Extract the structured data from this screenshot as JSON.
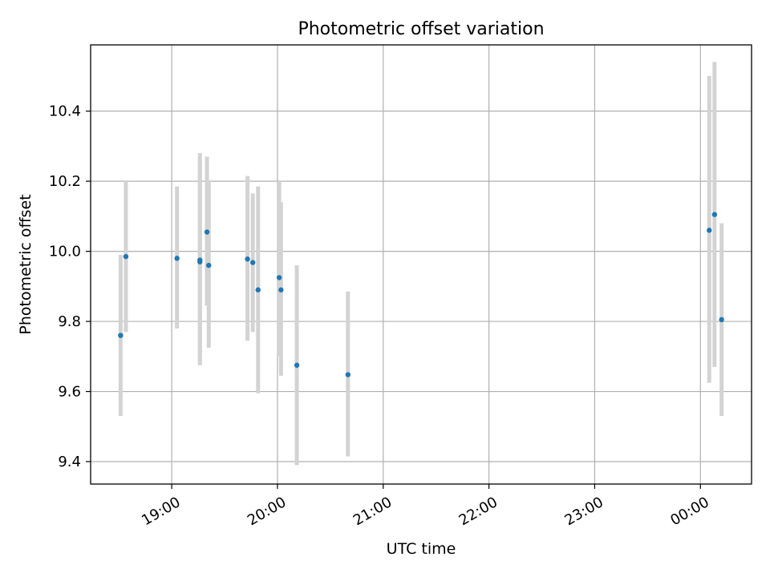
{
  "chart_data": {
    "type": "scatter",
    "title": "Photometric offset variation",
    "xlabel": "UTC time",
    "ylabel": "Photometric offset",
    "grid": true,
    "colors": {
      "points": "#1f77b4",
      "errorbars": "#d3d3d3"
    },
    "xlim": [
      "18:14",
      "00:29"
    ],
    "ylim": [
      9.336,
      10.589
    ],
    "xticks": [
      "19:00",
      "20:00",
      "21:00",
      "22:00",
      "23:00",
      "00:00"
    ],
    "yticks": [
      "9.4",
      "9.6",
      "9.8",
      "10.0",
      "10.2",
      "10.4"
    ],
    "points": [
      {
        "x": "18:31",
        "y": 9.76,
        "ylo": 9.53,
        "yhi": 9.99
      },
      {
        "x": "18:34",
        "y": 9.985,
        "ylo": 9.77,
        "yhi": 10.2
      },
      {
        "x": "19:03",
        "y": 9.98,
        "ylo": 9.78,
        "yhi": 10.185
      },
      {
        "x": "19:16",
        "y": 9.975,
        "ylo": 9.675,
        "yhi": 10.28
      },
      {
        "x": "19:16",
        "y": 9.97,
        "ylo": 9.68,
        "yhi": 10.26
      },
      {
        "x": "19:20",
        "y": 10.055,
        "ylo": 9.845,
        "yhi": 10.27
      },
      {
        "x": "19:21",
        "y": 9.96,
        "ylo": 9.725,
        "yhi": 10.2
      },
      {
        "x": "19:43",
        "y": 9.978,
        "ylo": 9.745,
        "yhi": 10.215
      },
      {
        "x": "19:46",
        "y": 9.968,
        "ylo": 9.77,
        "yhi": 10.165
      },
      {
        "x": "19:49",
        "y": 9.89,
        "ylo": 9.595,
        "yhi": 10.185
      },
      {
        "x": "20:01",
        "y": 9.925,
        "ylo": 9.7,
        "yhi": 10.2
      },
      {
        "x": "20:02",
        "y": 9.89,
        "ylo": 9.645,
        "yhi": 10.14
      },
      {
        "x": "20:11",
        "y": 9.675,
        "ylo": 9.39,
        "yhi": 9.96
      },
      {
        "x": "20:40",
        "y": 9.648,
        "ylo": 9.415,
        "yhi": 9.885
      },
      {
        "x": "00:05",
        "y": 10.06,
        "ylo": 9.625,
        "yhi": 10.5
      },
      {
        "x": "00:08",
        "y": 10.105,
        "ylo": 9.67,
        "yhi": 10.54
      },
      {
        "x": "00:12",
        "y": 9.805,
        "ylo": 9.53,
        "yhi": 10.08
      }
    ]
  }
}
